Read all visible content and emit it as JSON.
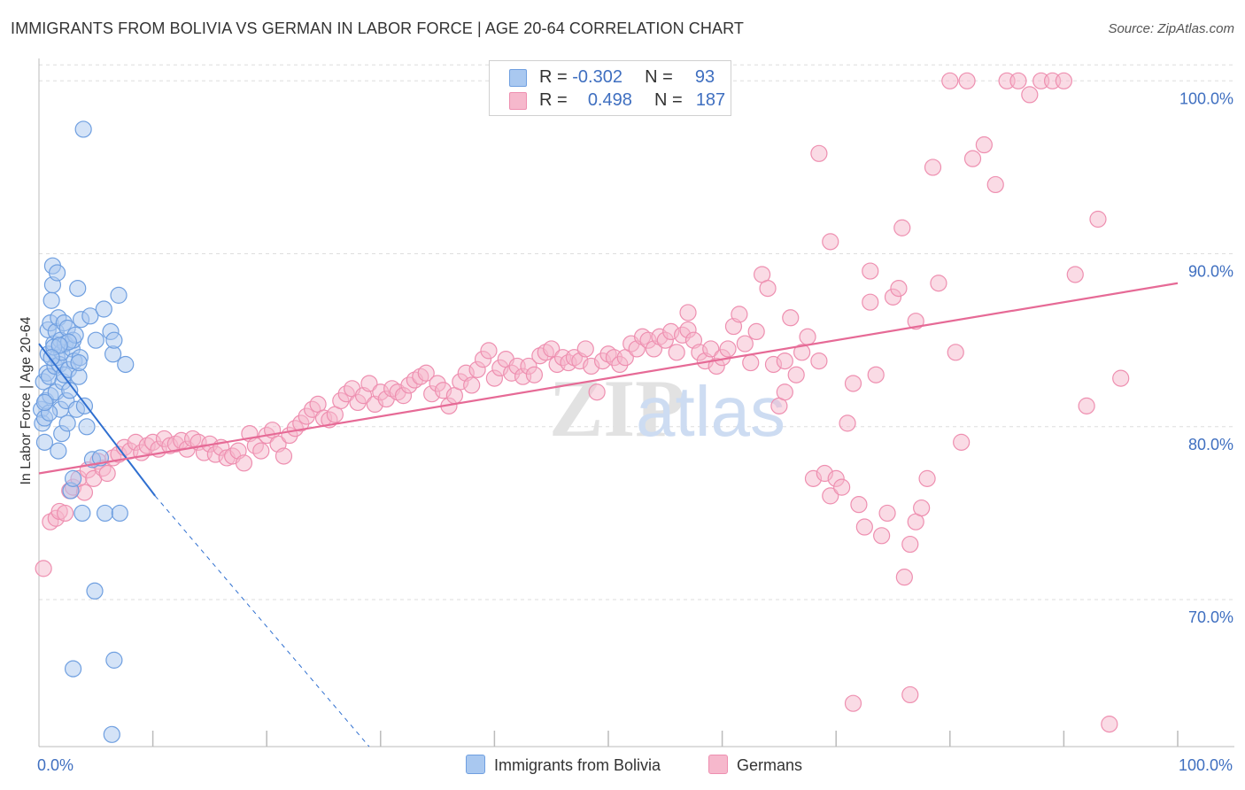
{
  "title": "IMMIGRANTS FROM BOLIVIA VS GERMAN IN LABOR FORCE | AGE 20-64 CORRELATION CHART",
  "source": "Source: ZipAtlas.com",
  "watermark": {
    "zip": "ZIP",
    "atlas": "atlas"
  },
  "colors": {
    "blue_fill": "#a9c8f0",
    "blue_stroke": "#6f9fe0",
    "blue_line": "#2f6fd0",
    "pink_fill": "#f6b8cc",
    "pink_stroke": "#ee8fb0",
    "pink_line": "#e66a96",
    "axis_text": "#3f6fc0",
    "grid": "#dddddd"
  },
  "legend": {
    "blue": {
      "r_label": "R =",
      "r_value": "-0.302",
      "n_label": "N =",
      "n_value": "93"
    },
    "pink": {
      "r_label": "R =",
      "r_value": "0.498",
      "n_label": "N =",
      "n_value": "187"
    }
  },
  "chart_data": {
    "type": "scatter",
    "title": "IMMIGRANTS FROM BOLIVIA VS GERMAN IN LABOR FORCE | AGE 20-64 CORRELATION CHART",
    "xlabel": "",
    "ylabel": "In Labor Force | Age 20-64",
    "xlim": [
      0,
      100
    ],
    "ylim": [
      61.5,
      101.5
    ],
    "x_tick_labels": [
      "0.0%",
      "100.0%"
    ],
    "y_ticks": [
      70,
      80,
      90,
      100
    ],
    "y_tick_labels": [
      "70.0%",
      "80.0%",
      "90.0%",
      "100.0%"
    ],
    "grid": true,
    "legend_position": "top-center",
    "series": [
      {
        "name": "Immigrants from Bolivia",
        "color": "#a9c8f0",
        "regression": {
          "x0": 0.0,
          "y0": 84.8,
          "x1": 10.2,
          "y1": 76.0,
          "dash_to_x": 29.0,
          "dash_to_y": 61.5
        },
        "points": [
          [
            0.2,
            81.0
          ],
          [
            0.3,
            80.2
          ],
          [
            0.4,
            82.6
          ],
          [
            0.5,
            79.1
          ],
          [
            0.5,
            80.5
          ],
          [
            0.6,
            81.5
          ],
          [
            0.7,
            83.1
          ],
          [
            0.8,
            84.2
          ],
          [
            0.8,
            85.6
          ],
          [
            0.9,
            82.9
          ],
          [
            1.0,
            86.0
          ],
          [
            1.0,
            81.8
          ],
          [
            1.1,
            87.3
          ],
          [
            1.2,
            88.2
          ],
          [
            1.2,
            89.3
          ],
          [
            1.3,
            84.8
          ],
          [
            1.4,
            83.5
          ],
          [
            1.5,
            85.5
          ],
          [
            1.5,
            82.0
          ],
          [
            1.6,
            84.0
          ],
          [
            1.6,
            88.9
          ],
          [
            1.7,
            86.3
          ],
          [
            1.7,
            78.6
          ],
          [
            1.8,
            83.6
          ],
          [
            1.9,
            85.0
          ],
          [
            1.9,
            81.0
          ],
          [
            2.0,
            84.3
          ],
          [
            2.0,
            79.6
          ],
          [
            2.1,
            82.6
          ],
          [
            2.2,
            86.0
          ],
          [
            2.2,
            83.0
          ],
          [
            2.3,
            84.8
          ],
          [
            2.4,
            81.5
          ],
          [
            2.5,
            85.7
          ],
          [
            2.5,
            80.2
          ],
          [
            2.6,
            83.3
          ],
          [
            2.7,
            82.1
          ],
          [
            2.8,
            76.3
          ],
          [
            2.9,
            84.5
          ],
          [
            3.0,
            85.0
          ],
          [
            3.0,
            77.0
          ],
          [
            3.1,
            83.8
          ],
          [
            3.2,
            85.3
          ],
          [
            3.3,
            81.0
          ],
          [
            3.4,
            88.0
          ],
          [
            3.5,
            82.9
          ],
          [
            3.6,
            84.0
          ],
          [
            3.7,
            86.2
          ],
          [
            3.8,
            75.0
          ],
          [
            3.9,
            97.2
          ],
          [
            4.0,
            81.2
          ],
          [
            4.2,
            80.0
          ],
          [
            4.5,
            86.4
          ],
          [
            4.7,
            78.1
          ],
          [
            4.9,
            70.5
          ],
          [
            5.0,
            85.0
          ],
          [
            5.4,
            78.2
          ],
          [
            5.7,
            86.8
          ],
          [
            5.8,
            75.0
          ],
          [
            6.3,
            85.5
          ],
          [
            6.5,
            84.2
          ],
          [
            6.6,
            85.0
          ],
          [
            6.4,
            62.2
          ],
          [
            6.6,
            66.5
          ],
          [
            7.0,
            87.6
          ],
          [
            7.1,
            75.0
          ],
          [
            7.6,
            83.6
          ],
          [
            3.0,
            66.0
          ],
          [
            1.3,
            84.6
          ],
          [
            0.9,
            80.8
          ],
          [
            2.6,
            84.9
          ],
          [
            1.8,
            84.7
          ],
          [
            3.5,
            83.7
          ],
          [
            0.5,
            81.4
          ],
          [
            1.1,
            84.0
          ]
        ]
      },
      {
        "name": "Germans",
        "color": "#f6b8cc",
        "regression": {
          "x0": 0.0,
          "y0": 77.3,
          "x1": 100.0,
          "y1": 88.3
        },
        "points": [
          [
            0.4,
            71.8
          ],
          [
            1.0,
            74.5
          ],
          [
            1.5,
            74.7
          ],
          [
            1.8,
            75.1
          ],
          [
            2.3,
            75.0
          ],
          [
            2.7,
            76.3
          ],
          [
            3.0,
            76.5
          ],
          [
            3.5,
            77.0
          ],
          [
            4.0,
            76.2
          ],
          [
            4.3,
            77.5
          ],
          [
            4.8,
            77.0
          ],
          [
            5.2,
            78.0
          ],
          [
            5.6,
            77.6
          ],
          [
            6.0,
            77.3
          ],
          [
            6.5,
            78.2
          ],
          [
            7.0,
            78.4
          ],
          [
            7.5,
            78.8
          ],
          [
            8.0,
            78.6
          ],
          [
            8.5,
            79.1
          ],
          [
            9.0,
            78.5
          ],
          [
            9.5,
            78.9
          ],
          [
            10.0,
            79.1
          ],
          [
            10.5,
            78.7
          ],
          [
            11.0,
            79.3
          ],
          [
            11.5,
            78.9
          ],
          [
            12.0,
            79.0
          ],
          [
            12.5,
            79.2
          ],
          [
            13.0,
            78.7
          ],
          [
            13.5,
            79.3
          ],
          [
            14.0,
            79.1
          ],
          [
            14.5,
            78.5
          ],
          [
            15.0,
            79.0
          ],
          [
            15.5,
            78.4
          ],
          [
            16.0,
            78.8
          ],
          [
            16.5,
            78.2
          ],
          [
            17.0,
            78.3
          ],
          [
            17.5,
            78.6
          ],
          [
            18.0,
            77.9
          ],
          [
            18.5,
            79.6
          ],
          [
            19.0,
            78.9
          ],
          [
            19.5,
            78.6
          ],
          [
            20.0,
            79.5
          ],
          [
            20.5,
            79.8
          ],
          [
            21.0,
            79.0
          ],
          [
            21.5,
            78.3
          ],
          [
            22.0,
            79.5
          ],
          [
            22.5,
            79.9
          ],
          [
            23.0,
            80.2
          ],
          [
            23.5,
            80.6
          ],
          [
            24.0,
            81.0
          ],
          [
            24.5,
            81.3
          ],
          [
            25.0,
            80.5
          ],
          [
            25.5,
            80.4
          ],
          [
            26.0,
            80.7
          ],
          [
            26.5,
            81.5
          ],
          [
            27.0,
            81.9
          ],
          [
            27.5,
            82.2
          ],
          [
            28.0,
            81.4
          ],
          [
            28.5,
            81.8
          ],
          [
            29.0,
            82.5
          ],
          [
            29.5,
            81.3
          ],
          [
            30.0,
            82.0
          ],
          [
            30.5,
            81.6
          ],
          [
            31.0,
            82.2
          ],
          [
            31.5,
            82.0
          ],
          [
            32.0,
            81.8
          ],
          [
            32.5,
            82.4
          ],
          [
            33.0,
            82.7
          ],
          [
            33.5,
            82.9
          ],
          [
            34.0,
            83.1
          ],
          [
            34.5,
            81.9
          ],
          [
            35.0,
            82.5
          ],
          [
            35.5,
            82.1
          ],
          [
            36.0,
            81.2
          ],
          [
            36.5,
            81.8
          ],
          [
            37.0,
            82.6
          ],
          [
            37.5,
            83.1
          ],
          [
            38.0,
            82.4
          ],
          [
            38.5,
            83.3
          ],
          [
            39.0,
            83.9
          ],
          [
            39.5,
            84.4
          ],
          [
            40.0,
            82.8
          ],
          [
            40.5,
            83.4
          ],
          [
            41.0,
            83.9
          ],
          [
            41.5,
            83.1
          ],
          [
            42.0,
            83.5
          ],
          [
            42.5,
            82.9
          ],
          [
            43.0,
            83.5
          ],
          [
            43.5,
            83.0
          ],
          [
            44.0,
            84.1
          ],
          [
            44.5,
            84.3
          ],
          [
            45.0,
            84.5
          ],
          [
            45.5,
            83.6
          ],
          [
            46.0,
            84.0
          ],
          [
            46.5,
            83.7
          ],
          [
            47.0,
            84.0
          ],
          [
            47.5,
            83.8
          ],
          [
            48.0,
            84.5
          ],
          [
            48.5,
            83.5
          ],
          [
            49.0,
            82.0
          ],
          [
            49.5,
            83.8
          ],
          [
            50.0,
            84.2
          ],
          [
            50.5,
            84.0
          ],
          [
            51.0,
            83.6
          ],
          [
            51.5,
            84.0
          ],
          [
            52.0,
            84.8
          ],
          [
            52.5,
            84.5
          ],
          [
            53.0,
            85.2
          ],
          [
            53.5,
            85.0
          ],
          [
            54.0,
            84.5
          ],
          [
            54.5,
            85.2
          ],
          [
            55.0,
            85.0
          ],
          [
            55.5,
            85.5
          ],
          [
            56.0,
            84.3
          ],
          [
            56.5,
            85.3
          ],
          [
            57.0,
            85.6
          ],
          [
            57.5,
            85.0
          ],
          [
            58.0,
            84.3
          ],
          [
            58.5,
            83.8
          ],
          [
            59.0,
            84.5
          ],
          [
            59.5,
            83.5
          ],
          [
            60.0,
            84.0
          ],
          [
            60.5,
            84.5
          ],
          [
            61.0,
            85.8
          ],
          [
            61.5,
            86.5
          ],
          [
            62.0,
            84.8
          ],
          [
            62.5,
            83.7
          ],
          [
            63.0,
            85.5
          ],
          [
            63.5,
            88.8
          ],
          [
            64.0,
            88.0
          ],
          [
            64.5,
            83.6
          ],
          [
            65.0,
            81.2
          ],
          [
            65.5,
            83.8
          ],
          [
            66.0,
            86.3
          ],
          [
            66.5,
            83.0
          ],
          [
            67.0,
            84.3
          ],
          [
            67.5,
            85.2
          ],
          [
            68.0,
            77.0
          ],
          [
            68.5,
            83.8
          ],
          [
            69.0,
            77.3
          ],
          [
            69.5,
            76.0
          ],
          [
            70.0,
            77.0
          ],
          [
            70.5,
            76.5
          ],
          [
            71.0,
            80.2
          ],
          [
            71.5,
            82.5
          ],
          [
            72.0,
            75.5
          ],
          [
            72.5,
            74.2
          ],
          [
            73.0,
            89.0
          ],
          [
            73.5,
            83.0
          ],
          [
            74.0,
            73.7
          ],
          [
            74.5,
            75.0
          ],
          [
            75.0,
            87.5
          ],
          [
            75.5,
            88.0
          ],
          [
            76.0,
            71.3
          ],
          [
            76.5,
            73.2
          ],
          [
            77.0,
            74.5
          ],
          [
            77.5,
            75.3
          ],
          [
            78.0,
            77.0
          ],
          [
            68.5,
            95.8
          ],
          [
            69.5,
            90.7
          ],
          [
            71.5,
            64.0
          ],
          [
            73.0,
            87.2
          ],
          [
            75.8,
            91.5
          ],
          [
            76.5,
            64.5
          ],
          [
            78.5,
            95.0
          ],
          [
            79.0,
            88.3
          ],
          [
            80.5,
            84.3
          ],
          [
            81.0,
            79.1
          ],
          [
            82.0,
            95.5
          ],
          [
            83.0,
            96.3
          ],
          [
            84.0,
            94.0
          ],
          [
            85.0,
            100.0
          ],
          [
            86.0,
            100.0
          ],
          [
            87.0,
            99.2
          ],
          [
            88.0,
            100.0
          ],
          [
            89.0,
            100.0
          ],
          [
            90.0,
            100.0
          ],
          [
            91.0,
            88.8
          ],
          [
            92.0,
            81.2
          ],
          [
            93.0,
            92.0
          ],
          [
            94.0,
            62.8
          ],
          [
            95.0,
            82.8
          ],
          [
            65.5,
            82.0
          ],
          [
            57.0,
            86.6
          ],
          [
            77.0,
            86.1
          ],
          [
            80.0,
            100.0
          ],
          [
            81.5,
            100.0
          ]
        ]
      }
    ]
  },
  "bottom_legend": [
    {
      "label": "Immigrants from Bolivia",
      "color": "#a9c8f0"
    },
    {
      "label": "Germans",
      "color": "#f6b8cc"
    }
  ]
}
